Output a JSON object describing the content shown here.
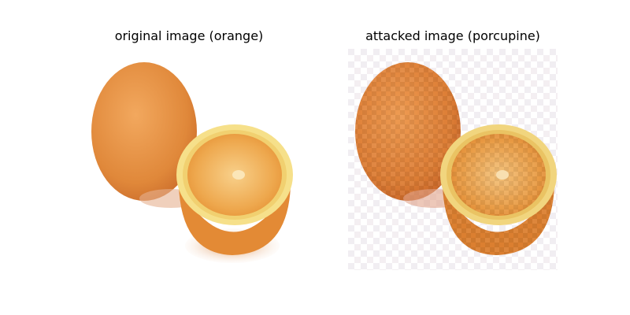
{
  "panels": [
    {
      "title": "original image (orange)"
    },
    {
      "title": "attacked image (porcupine)"
    }
  ],
  "colors": {
    "whole_orange_dark": "#d97b2e",
    "whole_orange_light": "#f0a25a",
    "slice_rind": "#f6e08a",
    "slice_flesh": "#eea84e",
    "slice_center": "#f9d99a",
    "shadow": "#c96a2a"
  }
}
